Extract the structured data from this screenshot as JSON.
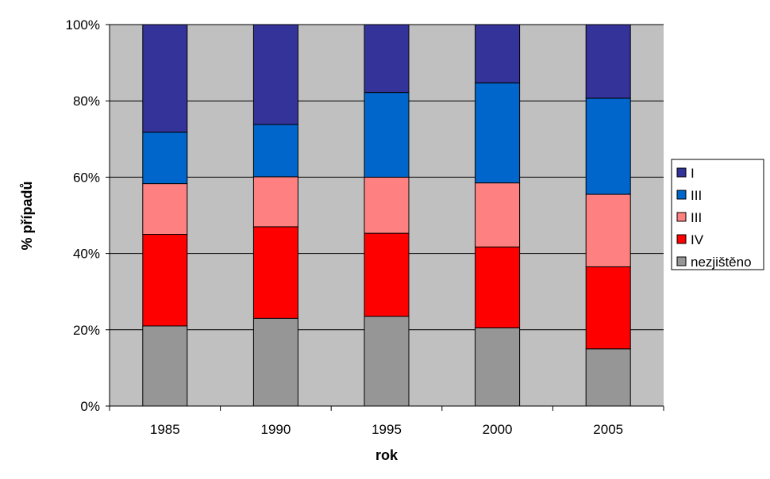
{
  "chart_data": {
    "type": "bar",
    "stacked": true,
    "percent": true,
    "categories": [
      "1985",
      "1990",
      "1995",
      "2000",
      "2005"
    ],
    "xlabel": "rok",
    "ylabel": "% případů",
    "ylim": [
      0,
      100
    ],
    "yticks": [
      "0%",
      "20%",
      "40%",
      "60%",
      "80%",
      "100%"
    ],
    "grid": true,
    "legend_position": "right",
    "series": [
      {
        "name": "nezjištěno",
        "color": "#969696",
        "values": [
          21,
          23,
          23.5,
          20.5,
          15
        ]
      },
      {
        "name": "IV",
        "color": "#ff0000",
        "values": [
          24,
          24,
          21.8,
          21.2,
          21.5
        ]
      },
      {
        "name": "III",
        "color": "#ff8080",
        "values": [
          13.3,
          13.1,
          14.7,
          16.8,
          19
        ]
      },
      {
        "name": "III",
        "color": "#0066cc",
        "values": [
          13.5,
          13.7,
          22.2,
          26.2,
          25.2
        ]
      },
      {
        "name": "I",
        "color": "#333399",
        "values": [
          28.2,
          26.2,
          17.8,
          15.3,
          19.3
        ]
      }
    ],
    "plot_background": "#c0c0c0",
    "gridline_color": "#000000"
  }
}
